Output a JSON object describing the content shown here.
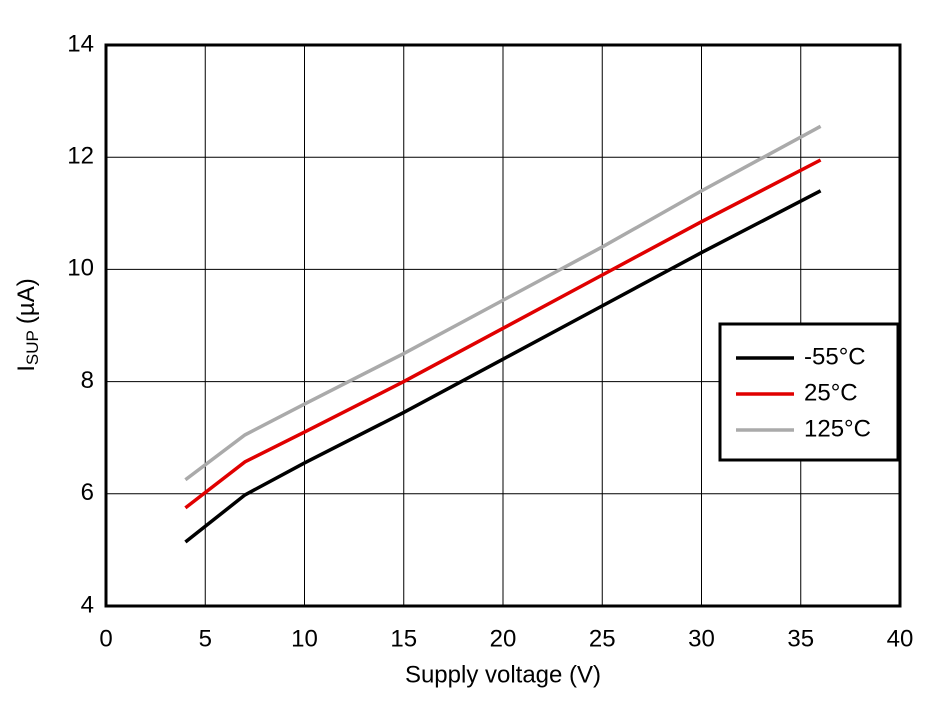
{
  "chart_data": {
    "type": "line",
    "x_label": "Supply voltage (V)",
    "y_label": {
      "main": "I",
      "sub": "SUP",
      "unit": "(µA)"
    },
    "x": [
      4,
      7,
      10,
      15,
      20,
      25,
      30,
      36
    ],
    "series": [
      {
        "name": "-55°C",
        "color": "#000000",
        "values": [
          5.14,
          5.98,
          6.55,
          7.45,
          8.4,
          9.35,
          10.3,
          11.4
        ]
      },
      {
        "name": "25°C",
        "color": "#e00000",
        "values": [
          5.75,
          6.57,
          7.1,
          8.0,
          8.95,
          9.9,
          10.85,
          11.95
        ]
      },
      {
        "name": "125°C",
        "color": "#aaaaaa",
        "values": [
          6.25,
          7.05,
          7.6,
          8.5,
          9.45,
          10.4,
          11.4,
          12.55
        ]
      }
    ],
    "xlim": [
      0,
      40
    ],
    "xticks": [
      0,
      5,
      10,
      15,
      20,
      25,
      30,
      35,
      40
    ],
    "ylim": [
      4,
      14
    ],
    "yticks": [
      4,
      6,
      8,
      10,
      12,
      14
    ],
    "grid": true,
    "legend": "right"
  }
}
